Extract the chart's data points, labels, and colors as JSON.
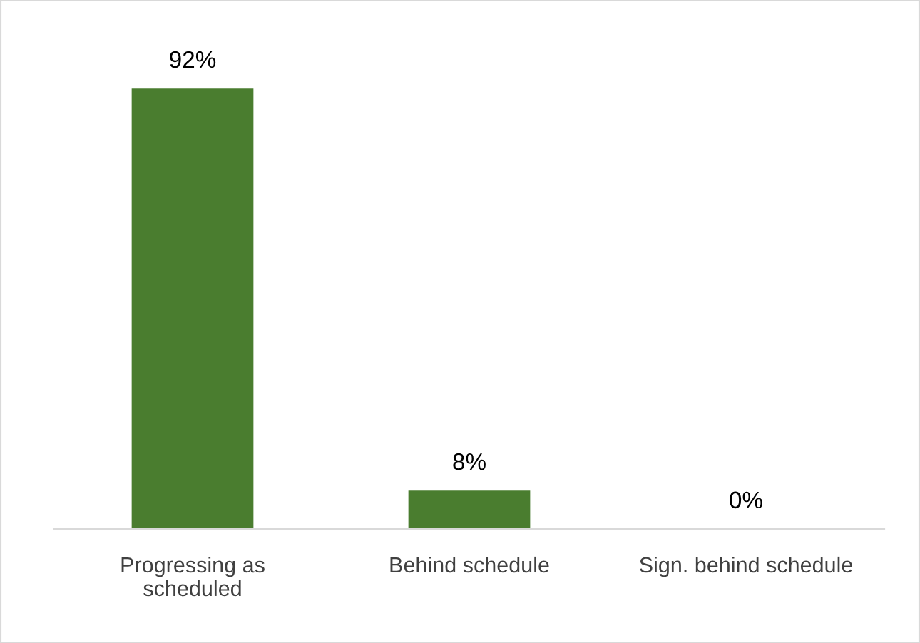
{
  "chart_data": {
    "type": "bar",
    "categories": [
      "Progressing as scheduled",
      "Behind schedule",
      "Sign. behind schedule"
    ],
    "values": [
      92,
      8,
      0
    ],
    "value_labels": [
      "92%",
      "8%",
      "0%"
    ],
    "color": "#4a7d2f",
    "grid": false,
    "legend": false
  }
}
